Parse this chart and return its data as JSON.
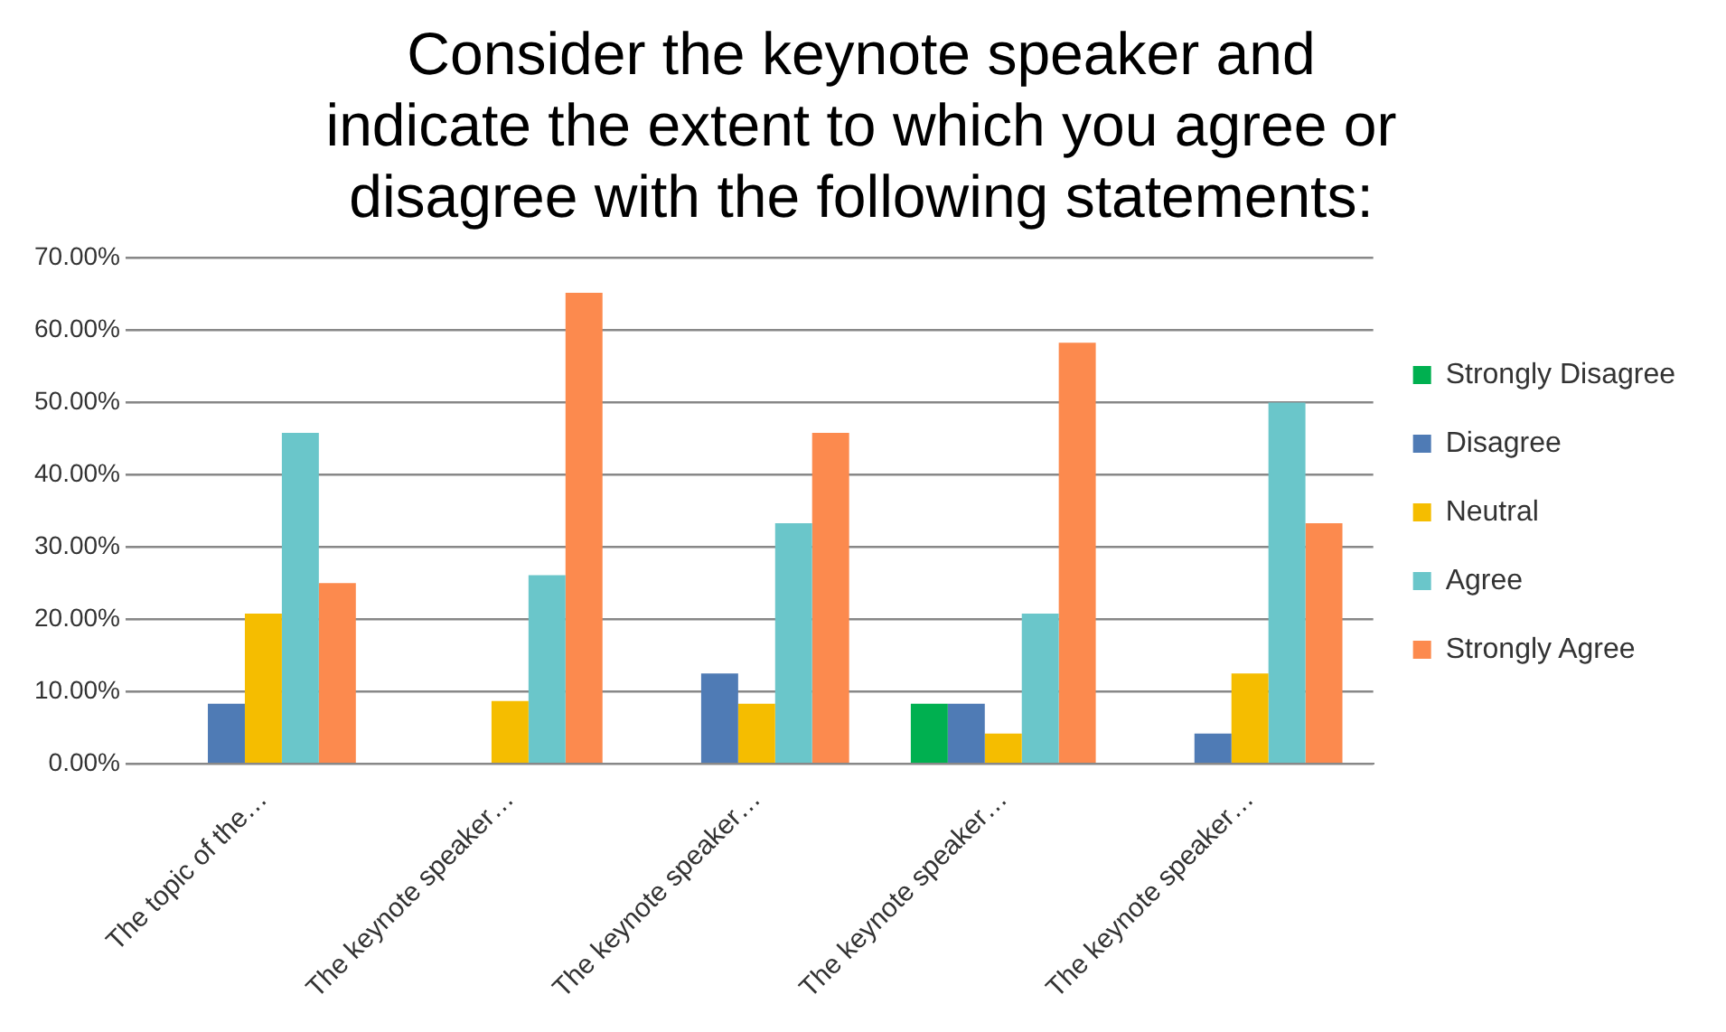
{
  "chart_data": {
    "type": "bar",
    "title": [
      "Consider the keynote speaker and",
      "indicate the extent to which you agree or",
      "disagree with the following statements:"
    ],
    "categories": [
      "The topic of the…",
      "The keynote speaker…",
      "The keynote speaker…",
      "The keynote speaker…",
      "The keynote speaker…"
    ],
    "series": [
      {
        "name": "Strongly Disagree",
        "color": "#00b050",
        "values": [
          0,
          0,
          0,
          8.3,
          0
        ]
      },
      {
        "name": "Disagree",
        "color": "#4f7bb5",
        "values": [
          8.3,
          0,
          12.5,
          8.3,
          4.2
        ]
      },
      {
        "name": "Neutral",
        "color": "#f5bd00",
        "values": [
          20.8,
          8.7,
          8.3,
          4.2,
          12.5
        ]
      },
      {
        "name": "Agree",
        "color": "#6ac6ca",
        "values": [
          45.8,
          26.1,
          33.3,
          20.8,
          50
        ]
      },
      {
        "name": "Strongly Agree",
        "color": "#fc8a4e",
        "values": [
          25,
          65.2,
          45.8,
          58.3,
          33.3
        ]
      }
    ],
    "ylim": [
      0,
      70
    ],
    "yticks": [
      {
        "value": 0,
        "label": "0.00%"
      },
      {
        "value": 10,
        "label": "10.00%"
      },
      {
        "value": 20,
        "label": "20.00%"
      },
      {
        "value": 30,
        "label": "30.00%"
      },
      {
        "value": 40,
        "label": "40.00%"
      },
      {
        "value": 50,
        "label": "50.00%"
      },
      {
        "value": 60,
        "label": "60.00%"
      },
      {
        "value": 70,
        "label": "70.00%"
      }
    ],
    "grid": "y",
    "legend": "right"
  }
}
